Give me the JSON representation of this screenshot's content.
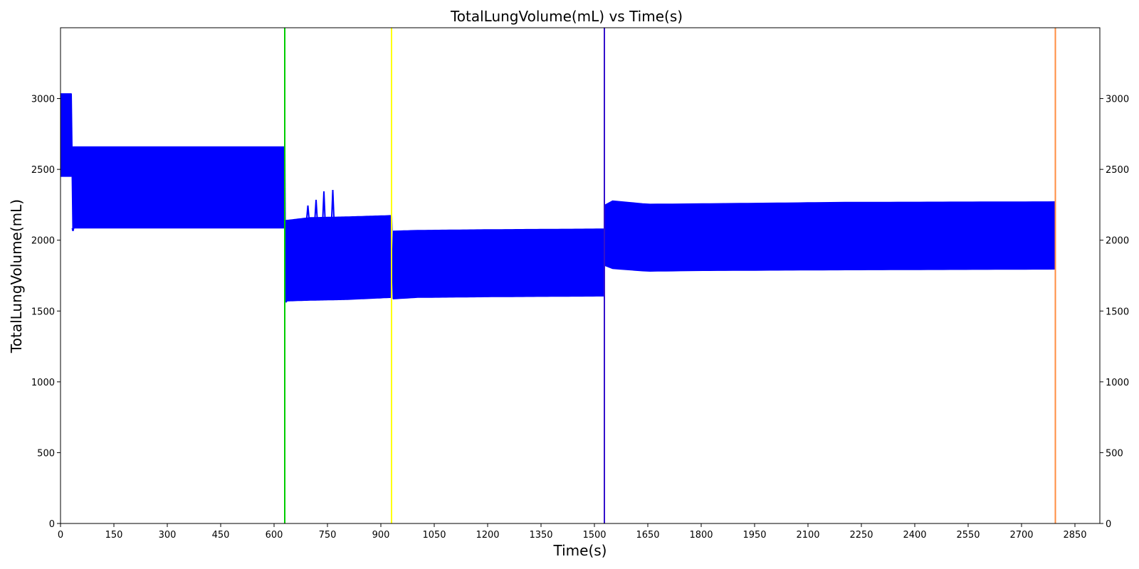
{
  "chart_data": {
    "type": "line",
    "title": "TotalLungVolume(mL) vs Time(s)",
    "xlabel": "Time(s)",
    "ylabel": "TotalLungVolume(mL)",
    "xlim": [
      0,
      2920
    ],
    "ylim": [
      0,
      3500
    ],
    "xticks": [
      0,
      150,
      300,
      450,
      600,
      750,
      900,
      1050,
      1200,
      1350,
      1500,
      1650,
      1800,
      1950,
      2100,
      2250,
      2400,
      2550,
      2700,
      2850
    ],
    "yticks": [
      0,
      500,
      1000,
      1500,
      2000,
      2500,
      3000
    ],
    "right_axis_ticks": true,
    "grid": false,
    "series": [
      {
        "color": "#0000ff",
        "style": "oscillating band (upper and lower envelope of breathing cycles)",
        "segments": [
          {
            "x": [
              0,
              30
            ],
            "upper": [
              3035,
              3035
            ],
            "lower": [
              2450,
              2450
            ]
          },
          {
            "x": [
              35,
              630
            ],
            "upper": [
              2660,
              2660
            ],
            "lower": [
              2085,
              2085
            ]
          },
          {
            "x": [
              632,
              700,
              800,
              930
            ],
            "upper": [
              2140,
              2160,
              2165,
              2175
            ],
            "lower": [
              1570,
              1575,
              1580,
              1595
            ]
          },
          {
            "x": [
              935,
              1000,
              1200,
              1525
            ],
            "upper": [
              2065,
              2070,
              2075,
              2080
            ],
            "lower": [
              1585,
              1595,
              1600,
              1605
            ]
          },
          {
            "x": [
              1530,
              1545,
              1650,
              1800,
              2200,
              2795
            ],
            "upper": [
              2250,
              2280,
              2255,
              2258,
              2268,
              2272
            ],
            "lower": [
              1820,
              1800,
              1780,
              1785,
              1790,
              1795
            ]
          }
        ],
        "spikes": [
          {
            "x": 695,
            "y": 2245
          },
          {
            "x": 718,
            "y": 2285
          },
          {
            "x": 740,
            "y": 2345
          },
          {
            "x": 765,
            "y": 2355
          }
        ],
        "dips": [
          {
            "x": 35,
            "y": 2065
          },
          {
            "x": 634,
            "y": 1565
          }
        ]
      }
    ],
    "vertical_lines": [
      {
        "x": 630,
        "color": "#00cc00"
      },
      {
        "x": 930,
        "color": "#ffff00"
      },
      {
        "x": 1528,
        "color": "#3311cc"
      },
      {
        "x": 2795,
        "color": "#ff8c40"
      }
    ]
  }
}
